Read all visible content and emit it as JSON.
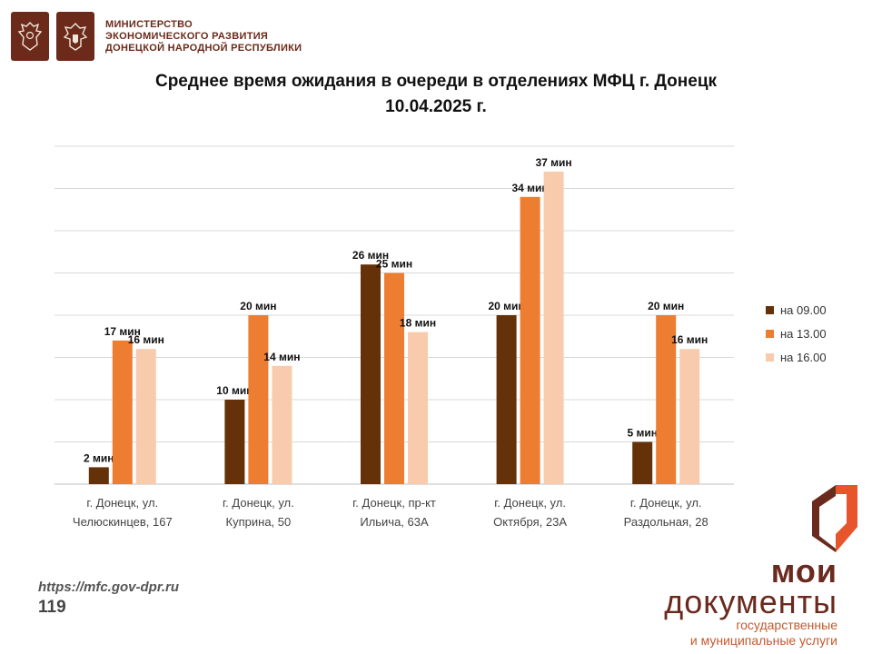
{
  "header": {
    "emblem_left_icon": "eagle-coat-of-arms-icon",
    "emblem_right_icon": "dpr-coat-of-arms-icon",
    "ministry_lines": [
      "МИНИСТЕРСТВО",
      "ЭКОНОМИЧЕСКОГО РАЗВИТИЯ",
      "ДОНЕЦКОЙ НАРОДНОЙ РЕСПУБЛИКИ"
    ]
  },
  "title_lines": [
    "Среднее время ожидания в очереди в отделениях МФЦ г. Донецк",
    "10.04.2025 г."
  ],
  "chart_data": {
    "type": "bar",
    "title": "Среднее время ожидания в очереди в отделениях МФЦ г. Донецк 10.04.2025 г.",
    "xlabel": "",
    "ylabel": "",
    "ylim": [
      0,
      40
    ],
    "grid": true,
    "legend_placement": "right",
    "value_suffix": " мин",
    "categories": [
      [
        "г. Донецк, ул.",
        "Челюскинцев, 167"
      ],
      [
        "г. Донецк, ул.",
        "Куприна, 50"
      ],
      [
        "г. Донецк, пр-кт",
        "Ильича, 63А"
      ],
      [
        "г. Донецк, ул.",
        "Октября, 23А"
      ],
      [
        "г. Донецк, ул.",
        "Раздольная, 28"
      ]
    ],
    "series": [
      {
        "name": "на 09.00",
        "color": "#643108",
        "values": [
          2,
          10,
          26,
          20,
          5
        ]
      },
      {
        "name": "на 13.00",
        "color": "#ed7d31",
        "values": [
          17,
          20,
          25,
          34,
          20
        ]
      },
      {
        "name": "на 16.00",
        "color": "#f8cbad",
        "values": [
          16,
          14,
          18,
          37,
          16
        ]
      }
    ]
  },
  "footer": {
    "url": "https://mfc.gov-dpr.ru",
    "page_number": "119"
  },
  "brand": {
    "logo_icon": "moi-dokumenty-logo-icon",
    "line1": "мои",
    "line2": "документы",
    "sub1": "государственные",
    "sub2": "и муниципальные услуги",
    "color": "#6a2a1e",
    "accent": "#e8542c"
  }
}
